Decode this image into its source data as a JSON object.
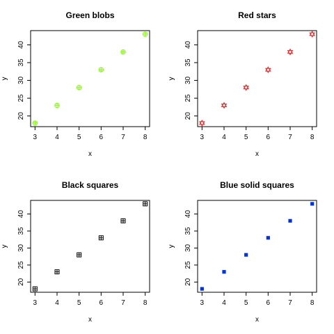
{
  "chart_data": [
    {
      "type": "scatter",
      "title": "Green blobs",
      "xlabel": "x",
      "ylabel": "y",
      "xlim": [
        2.8,
        8.2
      ],
      "ylim": [
        17.0,
        44.0
      ],
      "xticks": [
        3,
        4,
        5,
        6,
        7,
        8
      ],
      "yticks": [
        20,
        25,
        30,
        35,
        40
      ],
      "grid": false,
      "marker": "circle-plus",
      "color": "#7CFC00",
      "x": [
        3,
        4,
        5,
        6,
        7,
        8
      ],
      "y": [
        18,
        23,
        28,
        33,
        38,
        43
      ]
    },
    {
      "type": "scatter",
      "title": "Red stars",
      "xlabel": "x",
      "ylabel": "y",
      "xlim": [
        2.8,
        8.2
      ],
      "ylim": [
        17.0,
        44.0
      ],
      "xticks": [
        3,
        4,
        5,
        6,
        7,
        8
      ],
      "yticks": [
        20,
        25,
        30,
        35,
        40
      ],
      "grid": false,
      "marker": "star-of-david",
      "color": "#E03030",
      "x": [
        3,
        4,
        5,
        6,
        7,
        8
      ],
      "y": [
        18,
        23,
        28,
        33,
        38,
        43
      ]
    },
    {
      "type": "scatter",
      "title": "Black squares",
      "xlabel": "x",
      "ylabel": "y",
      "xlim": [
        2.8,
        8.2
      ],
      "ylim": [
        17.0,
        44.0
      ],
      "xticks": [
        3,
        4,
        5,
        6,
        7,
        8
      ],
      "yticks": [
        20,
        25,
        30,
        35,
        40
      ],
      "grid": false,
      "marker": "square-plus",
      "color": "#000000",
      "x": [
        3,
        4,
        5,
        6,
        7,
        8
      ],
      "y": [
        18,
        23,
        28,
        33,
        38,
        43
      ]
    },
    {
      "type": "scatter",
      "title": "Blue solid squares",
      "xlabel": "x",
      "ylabel": "y",
      "xlim": [
        2.8,
        8.2
      ],
      "ylim": [
        17.0,
        44.0
      ],
      "xticks": [
        3,
        4,
        5,
        6,
        7,
        8
      ],
      "yticks": [
        20,
        25,
        30,
        35,
        40
      ],
      "grid": false,
      "marker": "solid-square",
      "color": "#0033DD",
      "x": [
        3,
        4,
        5,
        6,
        7,
        8
      ],
      "y": [
        18,
        23,
        28,
        33,
        38,
        43
      ]
    }
  ]
}
